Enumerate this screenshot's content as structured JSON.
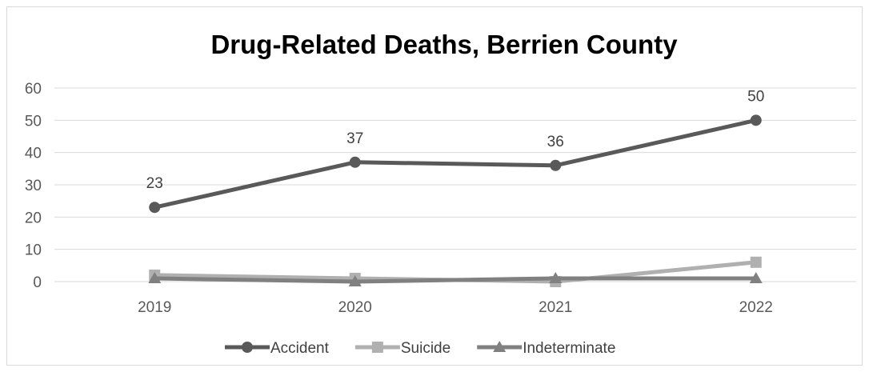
{
  "chart_data": {
    "type": "line",
    "title": "Drug-Related Deaths, Berrien County",
    "xlabel": "",
    "ylabel": "",
    "categories": [
      "2019",
      "2020",
      "2021",
      "2022"
    ],
    "ylim": [
      0,
      60
    ],
    "yticks": [
      0,
      10,
      20,
      30,
      40,
      50,
      60
    ],
    "grid": true,
    "legend_position": "bottom",
    "series": [
      {
        "name": "Accident",
        "values": [
          23,
          37,
          36,
          50
        ],
        "color": "#595959",
        "marker": "circle",
        "data_labels": true
      },
      {
        "name": "Suicide",
        "values": [
          2,
          1,
          0,
          6
        ],
        "color": "#b0b0b0",
        "marker": "square",
        "data_labels": false
      },
      {
        "name": "Indeterminate",
        "values": [
          1,
          0,
          1,
          1
        ],
        "color": "#808080",
        "marker": "triangle",
        "data_labels": false
      }
    ]
  }
}
